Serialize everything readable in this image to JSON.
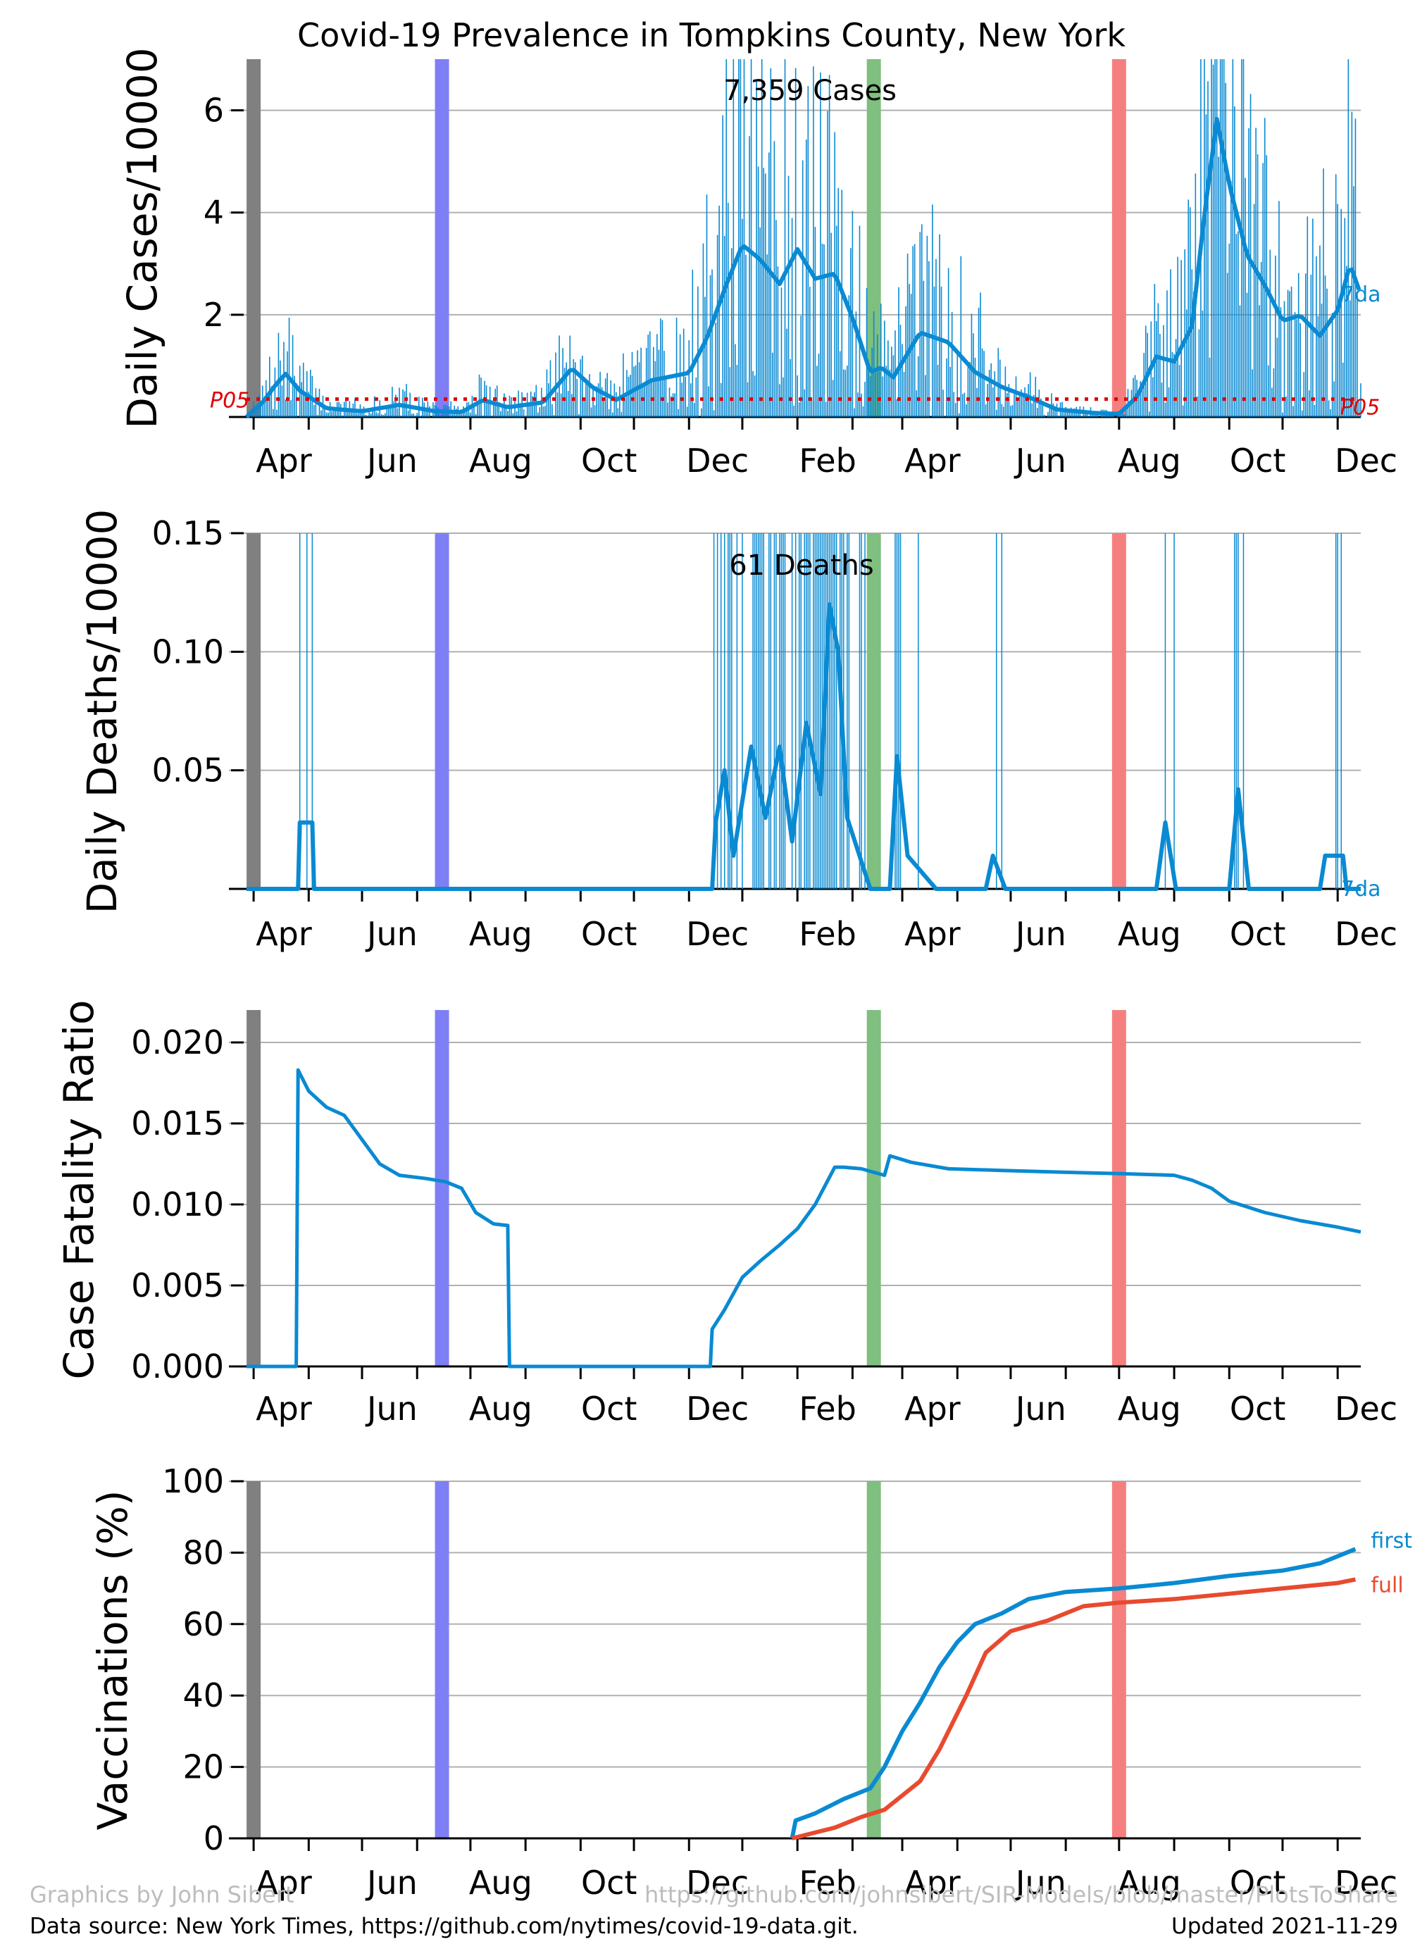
{
  "title": "Covid-19 Prevalence in Tompkins County, New York",
  "colors": {
    "series": "#0a8ad2",
    "full": "#e84a2f",
    "p05": "#e00000",
    "grid": "#b0b0b0",
    "band_gray": "#808080",
    "band_blue": "#7f7ff5",
    "band_green": "#7fbf7f",
    "band_red": "#f57f7f"
  },
  "footer": {
    "credit": "Graphics by John Sibert",
    "repo": "https://github.com/johnsibert/SIR-Models/blob/master/PlotsToShare",
    "source": "Data source: New York Times, https://github.com/nytimes/covid-19-data.git.",
    "updated": "Updated 2021-11-29"
  },
  "chart_data": [
    {
      "type": "bar",
      "panel": "cases",
      "ylabel": "Daily Cases/10000",
      "annotation": "7,359 Cases",
      "series_label": "7da",
      "threshold_label": "P05",
      "threshold_value": 0.35,
      "ylim": [
        0,
        7.0
      ],
      "yticks": [
        2,
        4,
        6
      ],
      "xticks": [
        "Apr",
        "Jun",
        "Aug",
        "Oct",
        "Dec",
        "Feb",
        "Apr",
        "Jun",
        "Aug",
        "Oct",
        "Dec"
      ],
      "x_start": "2020-03-11",
      "x_end": "2021-11-28",
      "bands": [
        {
          "date": "2020-03-15",
          "color": "band_gray"
        },
        {
          "date": "2020-06-29",
          "color": "band_blue"
        },
        {
          "date": "2021-02-27",
          "color": "band_green"
        },
        {
          "date": "2021-07-15",
          "color": "band_red"
        }
      ],
      "moving_average_keypoints": [
        [
          "2020-03-11",
          0.0
        ],
        [
          "2020-03-20",
          0.3
        ],
        [
          "2020-03-28",
          0.7
        ],
        [
          "2020-04-02",
          0.9
        ],
        [
          "2020-04-10",
          0.55
        ],
        [
          "2020-04-25",
          0.18
        ],
        [
          "2020-05-15",
          0.12
        ],
        [
          "2020-06-05",
          0.25
        ],
        [
          "2020-06-25",
          0.12
        ],
        [
          "2020-07-10",
          0.1
        ],
        [
          "2020-07-22",
          0.35
        ],
        [
          "2020-08-05",
          0.2
        ],
        [
          "2020-08-25",
          0.3
        ],
        [
          "2020-09-10",
          1.0
        ],
        [
          "2020-09-22",
          0.6
        ],
        [
          "2020-10-05",
          0.35
        ],
        [
          "2020-10-25",
          0.75
        ],
        [
          "2020-11-15",
          0.9
        ],
        [
          "2020-11-25",
          1.6
        ],
        [
          "2020-12-05",
          2.6
        ],
        [
          "2020-12-15",
          3.5
        ],
        [
          "2020-12-25",
          3.2
        ],
        [
          "2021-01-05",
          2.7
        ],
        [
          "2021-01-15",
          3.4
        ],
        [
          "2021-01-25",
          2.8
        ],
        [
          "2021-02-05",
          2.9
        ],
        [
          "2021-02-15",
          2.0
        ],
        [
          "2021-02-25",
          0.9
        ],
        [
          "2021-03-03",
          1.0
        ],
        [
          "2021-03-10",
          0.8
        ],
        [
          "2021-03-25",
          1.7
        ],
        [
          "2021-04-10",
          1.5
        ],
        [
          "2021-04-25",
          0.9
        ],
        [
          "2021-05-10",
          0.6
        ],
        [
          "2021-05-25",
          0.4
        ],
        [
          "2021-06-10",
          0.15
        ],
        [
          "2021-07-01",
          0.08
        ],
        [
          "2021-07-15",
          0.06
        ],
        [
          "2021-07-25",
          0.4
        ],
        [
          "2021-08-05",
          1.2
        ],
        [
          "2021-08-15",
          1.1
        ],
        [
          "2021-08-25",
          1.8
        ],
        [
          "2021-09-01",
          4.0
        ],
        [
          "2021-09-08",
          5.9
        ],
        [
          "2021-09-15",
          4.6
        ],
        [
          "2021-09-25",
          3.2
        ],
        [
          "2021-10-05",
          2.6
        ],
        [
          "2021-10-15",
          1.9
        ],
        [
          "2021-10-25",
          2.0
        ],
        [
          "2021-11-05",
          1.6
        ],
        [
          "2021-11-15",
          2.1
        ],
        [
          "2021-11-22",
          3.0
        ],
        [
          "2021-11-28",
          2.4
        ]
      ]
    },
    {
      "type": "bar",
      "panel": "deaths",
      "ylabel": "Daily Deaths/10000",
      "annotation": "61 Deaths",
      "series_label": "7da",
      "ylim": [
        0,
        0.15
      ],
      "yticks": [
        0.05,
        0.1,
        0.15
      ],
      "ytick_labels": [
        "0.05",
        "0.10",
        "0.15"
      ],
      "xticks": [
        "Apr",
        "Jun",
        "Aug",
        "Oct",
        "Dec",
        "Feb",
        "Apr",
        "Jun",
        "Aug",
        "Oct",
        "Dec"
      ],
      "x_start": "2020-03-11",
      "x_end": "2021-11-28",
      "moving_average_keypoints": [
        [
          "2020-03-11",
          0.0
        ],
        [
          "2020-04-09",
          0.0
        ],
        [
          "2020-04-10",
          0.028
        ],
        [
          "2020-04-17",
          0.028
        ],
        [
          "2020-04-18",
          0.0
        ],
        [
          "2020-11-28",
          0.0
        ],
        [
          "2020-11-30",
          0.028
        ],
        [
          "2020-12-05",
          0.05
        ],
        [
          "2020-12-10",
          0.014
        ],
        [
          "2020-12-20",
          0.06
        ],
        [
          "2020-12-28",
          0.03
        ],
        [
          "2021-01-05",
          0.06
        ],
        [
          "2021-01-12",
          0.02
        ],
        [
          "2021-01-20",
          0.07
        ],
        [
          "2021-01-28",
          0.04
        ],
        [
          "2021-02-02",
          0.12
        ],
        [
          "2021-02-07",
          0.1
        ],
        [
          "2021-02-12",
          0.03
        ],
        [
          "2021-02-25",
          0.0
        ],
        [
          "2021-03-08",
          0.0
        ],
        [
          "2021-03-12",
          0.056
        ],
        [
          "2021-03-18",
          0.014
        ],
        [
          "2021-04-03",
          0.0
        ],
        [
          "2021-05-01",
          0.0
        ],
        [
          "2021-05-05",
          0.014
        ],
        [
          "2021-05-12",
          0.0
        ],
        [
          "2021-06-01",
          0.0
        ],
        [
          "2021-08-05",
          0.0
        ],
        [
          "2021-08-10",
          0.028
        ],
        [
          "2021-08-16",
          0.0
        ],
        [
          "2021-09-15",
          0.0
        ],
        [
          "2021-09-20",
          0.042
        ],
        [
          "2021-09-26",
          0.0
        ],
        [
          "2021-11-05",
          0.0
        ],
        [
          "2021-11-08",
          0.014
        ],
        [
          "2021-11-18",
          0.014
        ],
        [
          "2021-11-20",
          0.0
        ],
        [
          "2021-11-28",
          0.0
        ]
      ]
    },
    {
      "type": "line",
      "panel": "cfr",
      "ylabel": "Case Fatality Ratio",
      "ylim": [
        0,
        0.022
      ],
      "yticks": [
        0.0,
        0.005,
        0.01,
        0.015,
        0.02
      ],
      "ytick_labels": [
        "0.000",
        "0.005",
        "0.010",
        "0.015",
        "0.020"
      ],
      "xticks": [
        "Apr",
        "Jun",
        "Aug",
        "Oct",
        "Dec",
        "Feb",
        "Apr",
        "Jun",
        "Aug",
        "Oct",
        "Dec"
      ],
      "x_start": "2020-03-11",
      "x_end": "2021-11-28",
      "points": [
        [
          "2020-03-11",
          0.0
        ],
        [
          "2020-04-08",
          0.0
        ],
        [
          "2020-04-09",
          0.0183
        ],
        [
          "2020-04-15",
          0.017
        ],
        [
          "2020-04-25",
          0.016
        ],
        [
          "2020-05-05",
          0.0155
        ],
        [
          "2020-05-15",
          0.014
        ],
        [
          "2020-05-25",
          0.0125
        ],
        [
          "2020-06-05",
          0.0118
        ],
        [
          "2020-06-20",
          0.0116
        ],
        [
          "2020-07-01",
          0.0114
        ],
        [
          "2020-07-10",
          0.011
        ],
        [
          "2020-07-18",
          0.0095
        ],
        [
          "2020-07-28",
          0.0088
        ],
        [
          "2020-08-05",
          0.0087
        ],
        [
          "2020-08-06",
          0.0
        ],
        [
          "2020-11-27",
          0.0
        ],
        [
          "2020-11-28",
          0.0023
        ],
        [
          "2020-12-05",
          0.0035
        ],
        [
          "2020-12-15",
          0.0055
        ],
        [
          "2020-12-25",
          0.0065
        ],
        [
          "2021-01-05",
          0.0075
        ],
        [
          "2021-01-15",
          0.0085
        ],
        [
          "2021-01-25",
          0.01
        ],
        [
          "2021-02-05",
          0.0123
        ],
        [
          "2021-02-10",
          0.0123
        ],
        [
          "2021-02-20",
          0.0122
        ],
        [
          "2021-03-05",
          0.0118
        ],
        [
          "2021-03-08",
          0.013
        ],
        [
          "2021-03-20",
          0.0126
        ],
        [
          "2021-04-10",
          0.0122
        ],
        [
          "2021-05-10",
          0.0121
        ],
        [
          "2021-06-10",
          0.012
        ],
        [
          "2021-07-15",
          0.0119
        ],
        [
          "2021-08-15",
          0.0118
        ],
        [
          "2021-08-25",
          0.0115
        ],
        [
          "2021-09-05",
          0.011
        ],
        [
          "2021-09-15",
          0.0102
        ],
        [
          "2021-10-05",
          0.0095
        ],
        [
          "2021-10-25",
          0.009
        ],
        [
          "2021-11-15",
          0.0086
        ],
        [
          "2021-11-28",
          0.0083
        ]
      ]
    },
    {
      "type": "line",
      "panel": "vaccinations",
      "ylabel": "Vaccinations (%)",
      "ylim": [
        0,
        100
      ],
      "yticks": [
        0,
        20,
        40,
        60,
        80,
        100
      ],
      "xticks": [
        "Apr",
        "Jun",
        "Aug",
        "Oct",
        "Dec",
        "Feb",
        "Apr",
        "Jun",
        "Aug",
        "Oct",
        "Dec"
      ],
      "x_start": "2020-03-11",
      "x_end": "2021-11-28",
      "series": [
        {
          "name": "first",
          "color": "series",
          "points": [
            [
              "2021-01-12",
              0
            ],
            [
              "2021-01-14",
              5
            ],
            [
              "2021-01-25",
              7
            ],
            [
              "2021-02-10",
              11
            ],
            [
              "2021-02-25",
              14
            ],
            [
              "2021-03-05",
              20
            ],
            [
              "2021-03-15",
              30
            ],
            [
              "2021-03-25",
              38
            ],
            [
              "2021-04-05",
              48
            ],
            [
              "2021-04-15",
              55
            ],
            [
              "2021-04-25",
              60
            ],
            [
              "2021-05-10",
              63
            ],
            [
              "2021-05-25",
              67
            ],
            [
              "2021-06-15",
              69
            ],
            [
              "2021-07-15",
              70
            ],
            [
              "2021-08-15",
              71.5
            ],
            [
              "2021-09-15",
              73.5
            ],
            [
              "2021-10-15",
              75
            ],
            [
              "2021-11-05",
              77
            ],
            [
              "2021-11-15",
              79
            ],
            [
              "2021-11-25",
              81
            ]
          ]
        },
        {
          "name": "full",
          "color": "full",
          "points": [
            [
              "2021-01-12",
              0
            ],
            [
              "2021-01-20",
              1
            ],
            [
              "2021-02-05",
              3
            ],
            [
              "2021-02-20",
              6
            ],
            [
              "2021-03-05",
              8
            ],
            [
              "2021-03-15",
              12
            ],
            [
              "2021-03-25",
              16
            ],
            [
              "2021-04-05",
              25
            ],
            [
              "2021-04-20",
              40
            ],
            [
              "2021-05-01",
              52
            ],
            [
              "2021-05-15",
              58
            ],
            [
              "2021-06-05",
              61
            ],
            [
              "2021-06-25",
              65
            ],
            [
              "2021-07-15",
              66
            ],
            [
              "2021-08-15",
              67
            ],
            [
              "2021-09-15",
              68.5
            ],
            [
              "2021-10-15",
              70
            ],
            [
              "2021-11-15",
              71.5
            ],
            [
              "2021-11-25",
              72.5
            ]
          ]
        }
      ]
    }
  ]
}
